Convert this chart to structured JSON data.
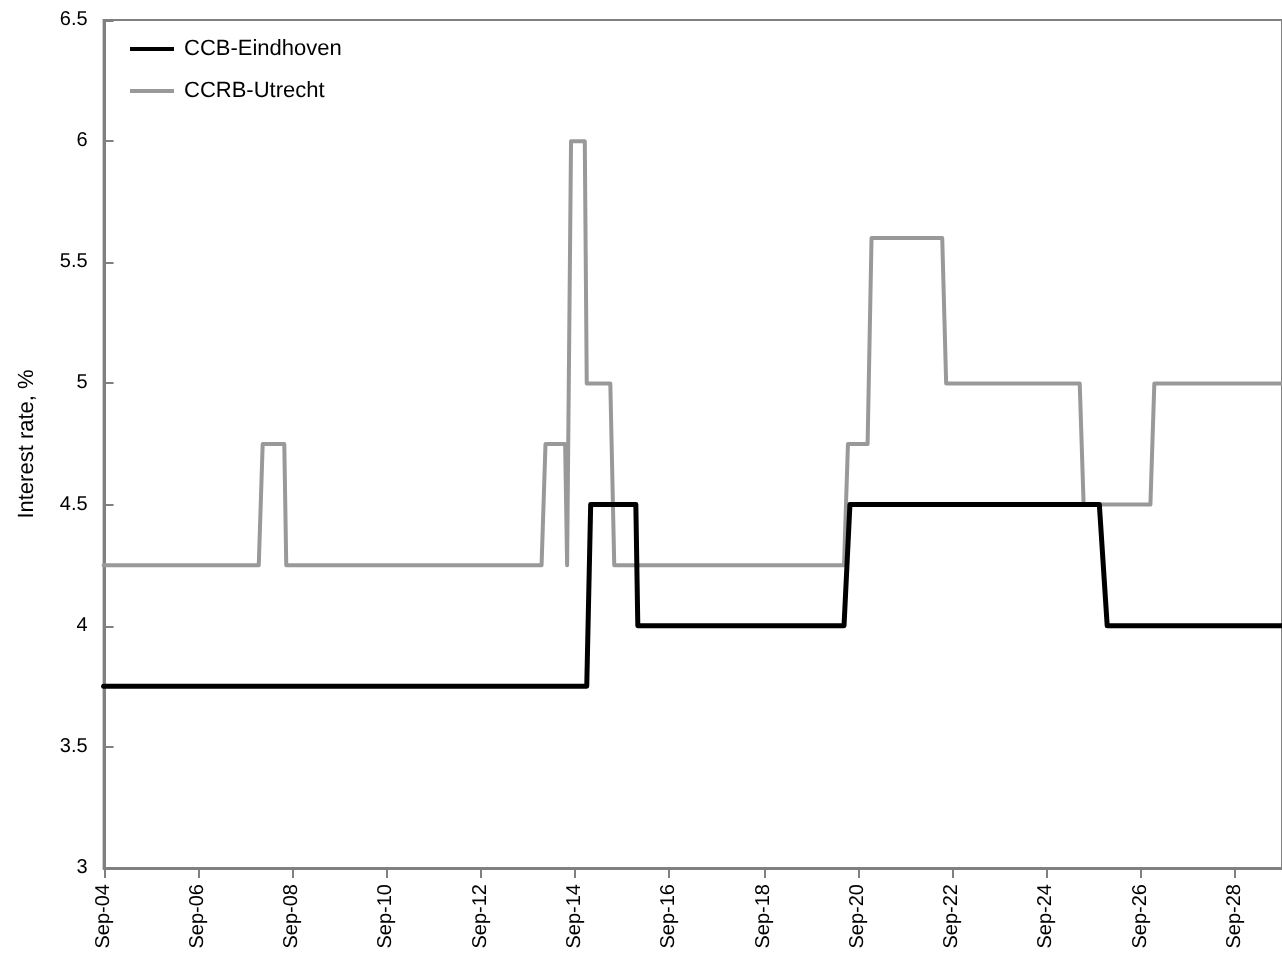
{
  "chart_data": {
    "type": "line",
    "ylabel": "Interest rate, %",
    "ylim": [
      3,
      6.5
    ],
    "yticks": [
      3,
      3.5,
      4,
      4.5,
      5,
      5.5,
      6,
      6.5
    ],
    "xlim": [
      "--09-04",
      "--09-29"
    ],
    "xticks": [
      {
        "value": "--09-04",
        "label": "Sep-04"
      },
      {
        "value": "--09-06",
        "label": "Sep-06"
      },
      {
        "value": "--09-08",
        "label": "Sep-08"
      },
      {
        "value": "--09-10",
        "label": "Sep-10"
      },
      {
        "value": "--09-12",
        "label": "Sep-12"
      },
      {
        "value": "--09-14",
        "label": "Sep-14"
      },
      {
        "value": "--09-16",
        "label": "Sep-16"
      },
      {
        "value": "--09-18",
        "label": "Sep-18"
      },
      {
        "value": "--09-20",
        "label": "Sep-20"
      },
      {
        "value": "--09-22",
        "label": "Sep-22"
      },
      {
        "value": "--09-24",
        "label": "Sep-24"
      },
      {
        "value": "--09-26",
        "label": "Sep-26"
      },
      {
        "value": "--09-28",
        "label": "Sep-28"
      }
    ],
    "grid": false,
    "legend": "top left",
    "marker": "none",
    "line_style": "solid",
    "series": [
      {
        "name": "CCB-Eindhoven",
        "color": "#000000",
        "x": [
          "--09-04T00:00",
          "--09-14T06:00",
          "--09-14T08:00",
          "--09-15T07:00",
          "--09-15T08:00",
          "--09-19T17:00",
          "--09-19T20:00",
          "--09-25T03:00",
          "--09-25T07:00",
          "--09-29T00:00"
        ],
        "values": [
          3.75,
          3.75,
          4.5,
          4.5,
          4,
          4,
          4.5,
          4.5,
          4,
          4
        ]
      },
      {
        "name": "CCRB-Utrecht",
        "color": "#999999",
        "x": [
          "--09-04T00:00",
          "--09-07T07:00",
          "--09-07T09:00",
          "--09-07T20:00",
          "--09-07T21:00",
          "--09-13T07:00",
          "--09-13T09:00",
          "--09-13T19:00",
          "--09-13T20:00",
          "--09-13T22:00",
          "--09-14T05:00",
          "--09-14T06:00",
          "--09-14T18:00",
          "--09-14T20:00",
          "--09-19T17:00",
          "--09-19T19:00",
          "--09-20T05:00",
          "--09-20T07:00",
          "--09-21T19:00",
          "--09-21T21:00",
          "--09-24T17:00",
          "--09-24T19:00",
          "--09-26T05:00",
          "--09-26T07:00",
          "--09-29T00:00"
        ],
        "values": [
          4.25,
          4.25,
          4.75,
          4.75,
          4.25,
          4.25,
          4.75,
          4.75,
          4.25,
          6,
          6,
          5,
          5,
          4.25,
          4.25,
          4.75,
          4.75,
          5.6,
          5.6,
          5,
          5,
          4.5,
          4.5,
          5,
          5
        ]
      }
    ]
  }
}
